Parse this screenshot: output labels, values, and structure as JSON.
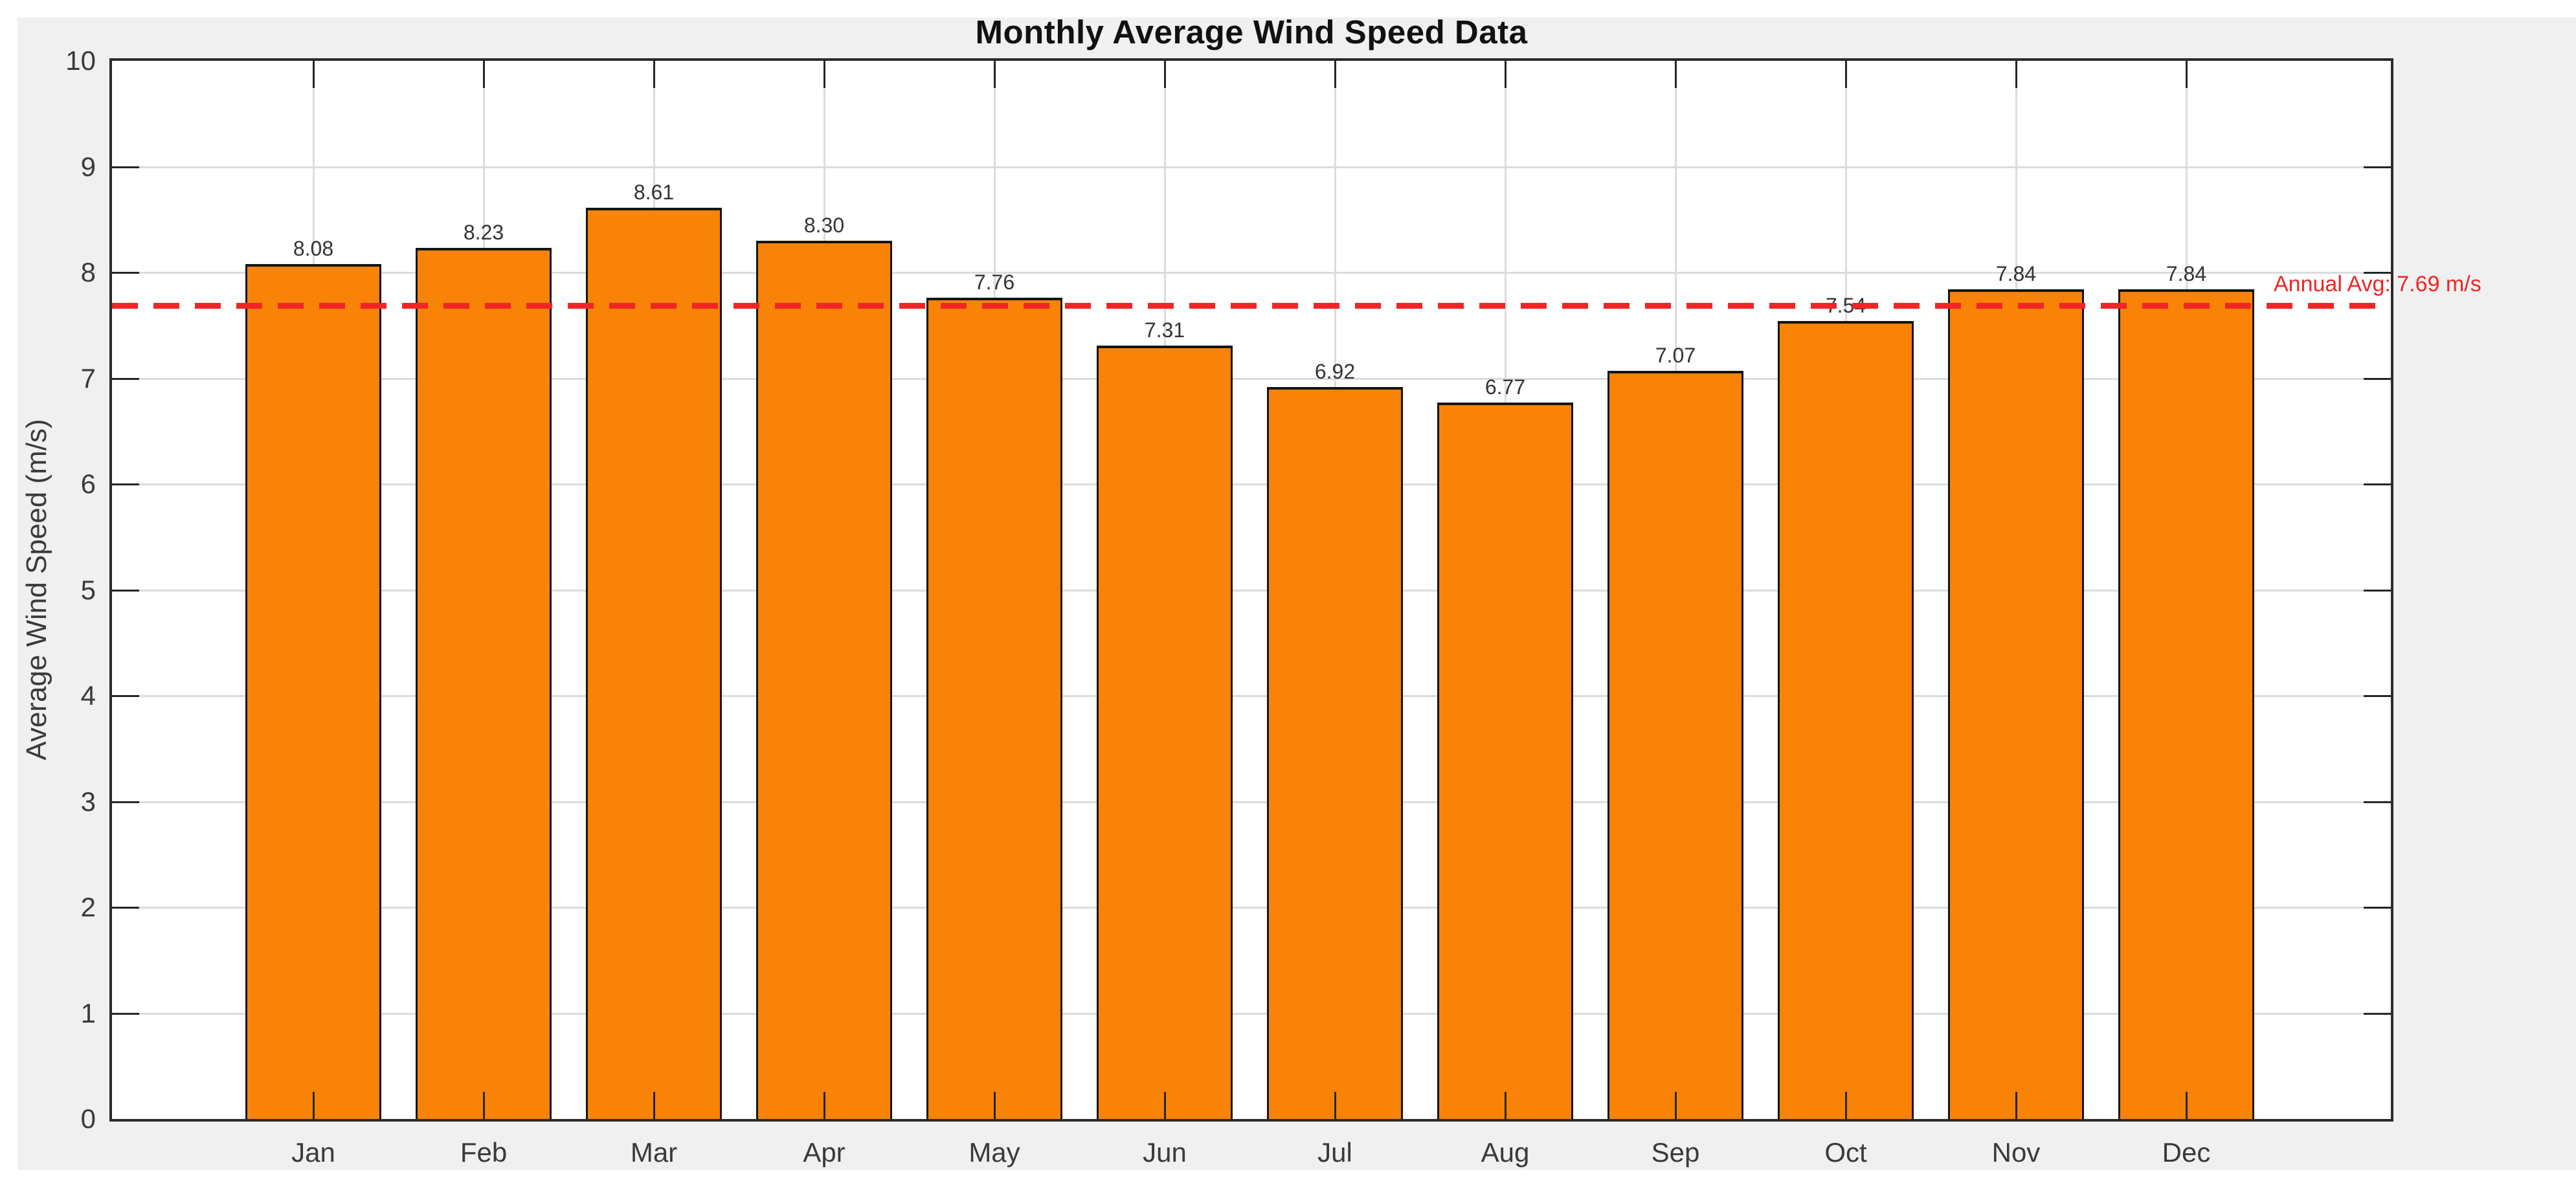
{
  "chart_data": {
    "type": "bar",
    "title": "Monthly Average Wind Speed Data",
    "ylabel": "Average Wind Speed (m/s)",
    "xlabel": "",
    "categories": [
      "Jan",
      "Feb",
      "Mar",
      "Apr",
      "May",
      "Jun",
      "Jul",
      "Aug",
      "Sep",
      "Oct",
      "Nov",
      "Dec"
    ],
    "values": [
      8.08,
      8.23,
      8.61,
      8.3,
      7.76,
      7.31,
      6.92,
      6.77,
      7.07,
      7.54,
      7.84,
      7.84
    ],
    "value_labels": [
      "8.08",
      "8.23",
      "8.61",
      "8.30",
      "7.76",
      "7.31",
      "6.92",
      "6.77",
      "7.07",
      "7.54",
      "7.84",
      "7.84"
    ],
    "ylim": [
      0,
      10
    ],
    "y_ticks": [
      0,
      1,
      2,
      3,
      4,
      5,
      6,
      7,
      8,
      9,
      10
    ],
    "grid": true,
    "legend_position": "none",
    "avg_line": {
      "value": 7.69,
      "label": "Annual Avg: 7.69 m/s",
      "style": "dashed",
      "color": "#f02626"
    },
    "colors": {
      "bar_fill": "#f98307",
      "bar_edge": "#141414",
      "avg_line": "#f02626",
      "grid": "#dcdcdc",
      "axis_box": "#2b2b2b",
      "figure_background": "#f0f0f0",
      "plot_background": "#ffffff",
      "tick_label": "#3a3a3a",
      "title_color": "#111111"
    }
  }
}
